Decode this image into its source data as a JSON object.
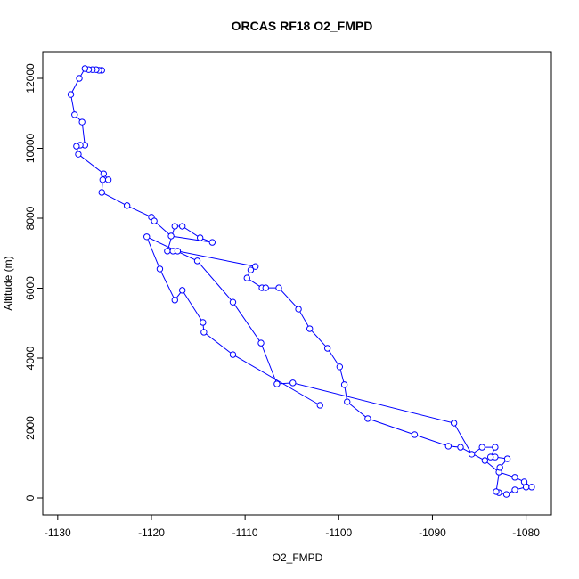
{
  "chart_data": {
    "type": "line",
    "title": "ORCAS RF18 O2_FMPD",
    "x_label": "O2_FMPD",
    "y_label": "Altitude (m)",
    "color": "#0000ff",
    "markers": "open-circle",
    "x": [
      -1125.3,
      -1125.6,
      -1125.9,
      -1126.3,
      -1126.7,
      -1127.1,
      -1127.7,
      -1128.6,
      -1128.2,
      -1127.4,
      -1127.1,
      -1127.6,
      -1128.0,
      -1127.8,
      -1125.1,
      -1124.6,
      -1125.2,
      -1125.3,
      -1122.6,
      -1120.0,
      -1119.7,
      -1117.9,
      -1113.5,
      -1114.8,
      -1116.7,
      -1117.5,
      -1118.3,
      -1117.7,
      -1117.2,
      -1108.9,
      -1109.4,
      -1109.8,
      -1108.2,
      -1107.8,
      -1106.4,
      -1104.3,
      -1103.1,
      -1101.2,
      -1099.9,
      -1099.4,
      -1099.1,
      -1096.9,
      -1091.9,
      -1088.3,
      -1087.0,
      -1084.4,
      -1082.9,
      -1081.2,
      -1080.2,
      -1079.4,
      -1080.0,
      -1081.2,
      -1082.1,
      -1082.9,
      -1083.2,
      -1082.8,
      -1082.0,
      -1083.3,
      -1083.8,
      -1083.3,
      -1084.7,
      -1085.8,
      -1087.7,
      -1104.9,
      -1106.6,
      -1108.3,
      -1111.3,
      -1115.1,
      -1120.5,
      -1119.1,
      -1117.5,
      -1116.7,
      -1114.5,
      -1114.4,
      -1111.3,
      -1102.0
    ],
    "values": [
      12230,
      12230,
      12250,
      12250,
      12250,
      12280,
      12000,
      11540,
      10960,
      10750,
      10090,
      10090,
      10060,
      9830,
      9270,
      9100,
      9100,
      8740,
      8360,
      8030,
      7920,
      7490,
      7310,
      7440,
      7770,
      7770,
      7060,
      7060,
      7060,
      6620,
      6520,
      6290,
      6010,
      6010,
      6010,
      5400,
      4840,
      4280,
      3750,
      3240,
      2750,
      2270,
      1810,
      1480,
      1450,
      1070,
      740,
      590,
      460,
      310,
      310,
      230,
      100,
      150,
      180,
      870,
      1120,
      1170,
      1170,
      1450,
      1450,
      1250,
      2140,
      3290,
      3260,
      4430,
      5600,
      6780,
      7470,
      6550,
      5660,
      5940,
      5020,
      4740,
      4100,
      2650
    ],
    "xlim": [
      -1131.6,
      -1077.3
    ],
    "ylim": [
      -484,
      12764
    ],
    "xticks": [
      -1130,
      -1120,
      -1110,
      -1100,
      -1090,
      -1080
    ],
    "yticks": [
      0,
      2000,
      4000,
      6000,
      8000,
      10000,
      12000
    ]
  }
}
